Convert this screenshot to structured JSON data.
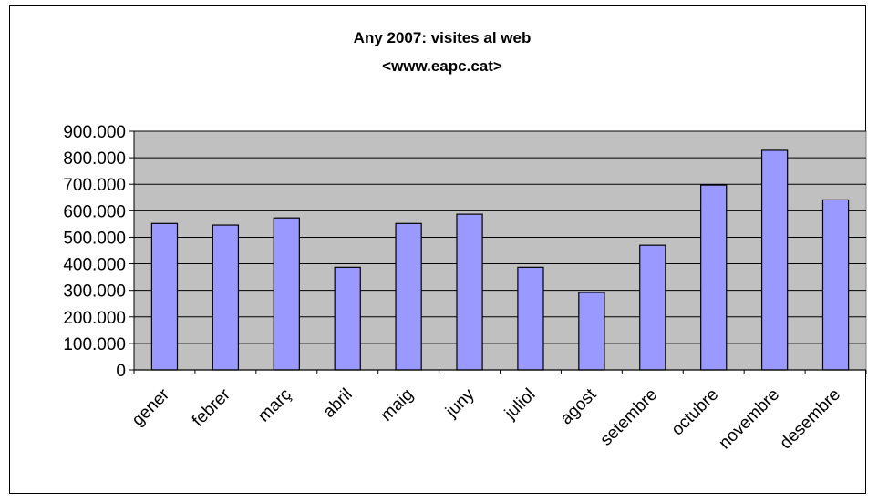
{
  "chart_data": {
    "type": "bar",
    "title": "Any 2007: visites al web",
    "subtitle": "<www.eapc.cat>",
    "categories": [
      "gener",
      "febrer",
      "març",
      "abril",
      "maig",
      "juny",
      "juliol",
      "agost",
      "setembre",
      "octubre",
      "novembre",
      "desembre"
    ],
    "series": [
      {
        "values": [
          552000,
          546000,
          573000,
          387000,
          552000,
          587000,
          387000,
          292000,
          470000,
          697000,
          828000,
          641000
        ]
      }
    ],
    "yticks": [
      "0",
      "100.000",
      "200.000",
      "300.000",
      "400.000",
      "500.000",
      "600.000",
      "700.000",
      "800.000",
      "900.000"
    ],
    "ylim": [
      0,
      900000
    ],
    "grid": true,
    "legend": "none",
    "colors": {
      "bar_fill": "#9999ff",
      "bar_stroke": "#000000",
      "plot_background": "#c0c0c0",
      "gridline": "#000000"
    }
  }
}
